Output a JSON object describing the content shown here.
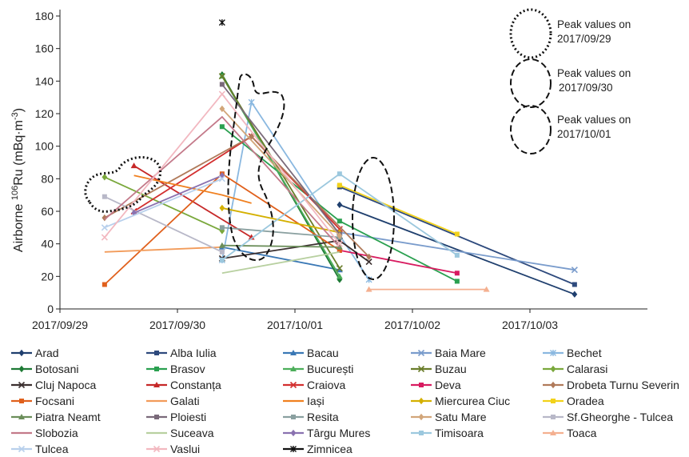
{
  "chart_data": {
    "type": "line",
    "ylabel": {
      "prefix": "Airborne ",
      "sup": "106",
      "element": "Ru",
      "unit_open": " (mBq·m",
      "unit_sup": "-3",
      "unit_close": ")"
    },
    "xlabel": "",
    "ylim": [
      0,
      180
    ],
    "yticks": [
      0,
      20,
      40,
      60,
      80,
      100,
      120,
      140,
      160,
      180
    ],
    "xlim": [
      0,
      5
    ],
    "xticks": [
      {
        "x": 0,
        "label": "2017/09/29"
      },
      {
        "x": 1,
        "label": "2017/09/30"
      },
      {
        "x": 2,
        "label": "2017/10/01"
      },
      {
        "x": 3,
        "label": "2017/10/02"
      },
      {
        "x": 4,
        "label": "2017/10/03"
      }
    ],
    "annotations": [
      {
        "style": "dotted",
        "lines": [
          "Peak values on",
          "2017/09/29"
        ]
      },
      {
        "style": "dashed",
        "lines": [
          "Peak values on",
          "2017/09/30"
        ]
      },
      {
        "style": "dashed",
        "lines": [
          "Peak values on",
          "2017/10/01"
        ]
      }
    ],
    "series": [
      {
        "name": "Arad",
        "color": "#1f3f6e",
        "marker": "diamond",
        "points": [
          [
            2.38,
            64
          ],
          [
            4.38,
            9
          ]
        ]
      },
      {
        "name": "Alba Iulia",
        "color": "#2e4a7d",
        "marker": "square",
        "points": [
          [
            2.38,
            75
          ],
          [
            4.38,
            15
          ]
        ]
      },
      {
        "name": "Bacau",
        "color": "#3a78b5",
        "marker": "triangle",
        "points": [
          [
            1.38,
            38
          ],
          [
            2.38,
            24
          ]
        ]
      },
      {
        "name": "Baia Mare",
        "color": "#7a9ccc",
        "marker": "x",
        "points": [
          [
            2.38,
            47
          ],
          [
            4.38,
            24
          ]
        ]
      },
      {
        "name": "Bechet",
        "color": "#8ab8e0",
        "marker": "star",
        "points": [
          [
            1.38,
            30
          ],
          [
            1.63,
            127
          ],
          [
            2.63,
            18
          ]
        ]
      },
      {
        "name": "Botosani",
        "color": "#1e7a35",
        "marker": "diamond",
        "points": [
          [
            1.38,
            144
          ],
          [
            2.38,
            18
          ]
        ]
      },
      {
        "name": "Brasov",
        "color": "#2aa050",
        "marker": "square",
        "points": [
          [
            1.38,
            112
          ],
          [
            2.38,
            54
          ],
          [
            3.38,
            17
          ]
        ]
      },
      {
        "name": "București",
        "color": "#4cae5a",
        "marker": "triangle",
        "points": [
          [
            1.38,
            143
          ],
          [
            2.38,
            20
          ]
        ]
      },
      {
        "name": "Buzau",
        "color": "#6a7d2a",
        "marker": "x",
        "points": [
          [
            1.38,
            143
          ],
          [
            2.38,
            25
          ]
        ]
      },
      {
        "name": "Calarasi",
        "color": "#7aa83c",
        "marker": "diamond",
        "points": [
          [
            0.38,
            81
          ],
          [
            1.38,
            48
          ]
        ]
      },
      {
        "name": "Cluj Napoca",
        "color": "#3a2f2f",
        "marker": "x",
        "points": [
          [
            1.38,
            31
          ],
          [
            2.38,
            42
          ],
          [
            2.63,
            29
          ]
        ]
      },
      {
        "name": "Constanța",
        "color": "#c62828",
        "marker": "triangle",
        "points": [
          [
            0.63,
            88
          ],
          [
            1.63,
            44
          ]
        ]
      },
      {
        "name": "Craiova",
        "color": "#d32f2f",
        "marker": "x",
        "points": [
          [
            0.63,
            60
          ],
          [
            1.63,
            106
          ],
          [
            2.38,
            49
          ]
        ]
      },
      {
        "name": "Deva",
        "color": "#d81b60",
        "marker": "square",
        "points": [
          [
            2.38,
            36
          ],
          [
            3.38,
            22
          ]
        ]
      },
      {
        "name": "Drobeta Turnu Severin",
        "color": "#b07a5a",
        "marker": "diamond",
        "points": [
          [
            0.38,
            56
          ],
          [
            1.63,
            106
          ],
          [
            2.63,
            32
          ]
        ]
      },
      {
        "name": "Focsani",
        "color": "#e0601c",
        "marker": "square",
        "points": [
          [
            0.38,
            15
          ],
          [
            1.38,
            83
          ],
          [
            2.38,
            36
          ]
        ]
      },
      {
        "name": "Galati",
        "color": "#f29b5a",
        "marker": "line",
        "points": [
          [
            0.38,
            35
          ],
          [
            1.38,
            38
          ]
        ]
      },
      {
        "name": "Iași",
        "color": "#f08020",
        "marker": "line",
        "points": [
          [
            0.63,
            82
          ],
          [
            1.38,
            70
          ],
          [
            1.63,
            65
          ]
        ]
      },
      {
        "name": "Miercurea Ciuc",
        "color": "#d4b000",
        "marker": "diamond",
        "points": [
          [
            1.38,
            62
          ],
          [
            2.38,
            47
          ]
        ]
      },
      {
        "name": "Oradea",
        "color": "#f2d21a",
        "marker": "square",
        "points": [
          [
            2.38,
            76
          ],
          [
            3.38,
            46
          ]
        ]
      },
      {
        "name": "Piatra Neamt",
        "color": "#6b8e5a",
        "marker": "triangle",
        "points": [
          [
            1.38,
            39
          ],
          [
            2.38,
            38
          ]
        ]
      },
      {
        "name": "Ploiesti",
        "color": "#7a6a7a",
        "marker": "square",
        "points": [
          [
            1.38,
            138
          ],
          [
            2.38,
            46
          ]
        ]
      },
      {
        "name": "Resita",
        "color": "#8aa0a0",
        "marker": "square",
        "points": [
          [
            1.38,
            50
          ],
          [
            2.38,
            44
          ]
        ]
      },
      {
        "name": "Satu Mare",
        "color": "#d2a67a",
        "marker": "diamond",
        "points": [
          [
            1.38,
            123
          ],
          [
            2.38,
            45
          ]
        ]
      },
      {
        "name": "Sf.Gheorghe - Tulcea",
        "color": "#b8b8c8",
        "marker": "square",
        "points": [
          [
            0.38,
            69
          ],
          [
            1.38,
            35
          ]
        ]
      },
      {
        "name": "Slobozia",
        "color": "#c47a8a",
        "marker": "line",
        "points": [
          [
            0.38,
            55
          ],
          [
            1.38,
            118
          ],
          [
            2.38,
            38
          ]
        ]
      },
      {
        "name": "Suceava",
        "color": "#b8d0a0",
        "marker": "line",
        "points": [
          [
            1.38,
            22
          ],
          [
            2.38,
            35
          ]
        ]
      },
      {
        "name": "Târgu Mures",
        "color": "#8a72b0",
        "marker": "diamond",
        "points": [
          [
            0.63,
            59
          ],
          [
            1.38,
            82
          ]
        ]
      },
      {
        "name": "Timisoara",
        "color": "#9cc8de",
        "marker": "square",
        "points": [
          [
            1.38,
            30
          ],
          [
            2.38,
            83
          ],
          [
            3.38,
            33
          ]
        ]
      },
      {
        "name": "Toaca",
        "color": "#f4b090",
        "marker": "triangle",
        "points": [
          [
            2.63,
            12
          ],
          [
            3.63,
            12
          ]
        ]
      },
      {
        "name": "Tulcea",
        "color": "#b8d0ec",
        "marker": "x",
        "points": [
          [
            0.38,
            50
          ],
          [
            1.38,
            80
          ]
        ]
      },
      {
        "name": "Vaslui",
        "color": "#f2b8c0",
        "marker": "x",
        "points": [
          [
            0.38,
            44
          ],
          [
            1.38,
            132
          ],
          [
            2.38,
            40
          ]
        ]
      },
      {
        "name": "Zimnicea",
        "color": "#111111",
        "marker": "star",
        "points": [
          [
            1.38,
            176
          ]
        ]
      }
    ]
  }
}
